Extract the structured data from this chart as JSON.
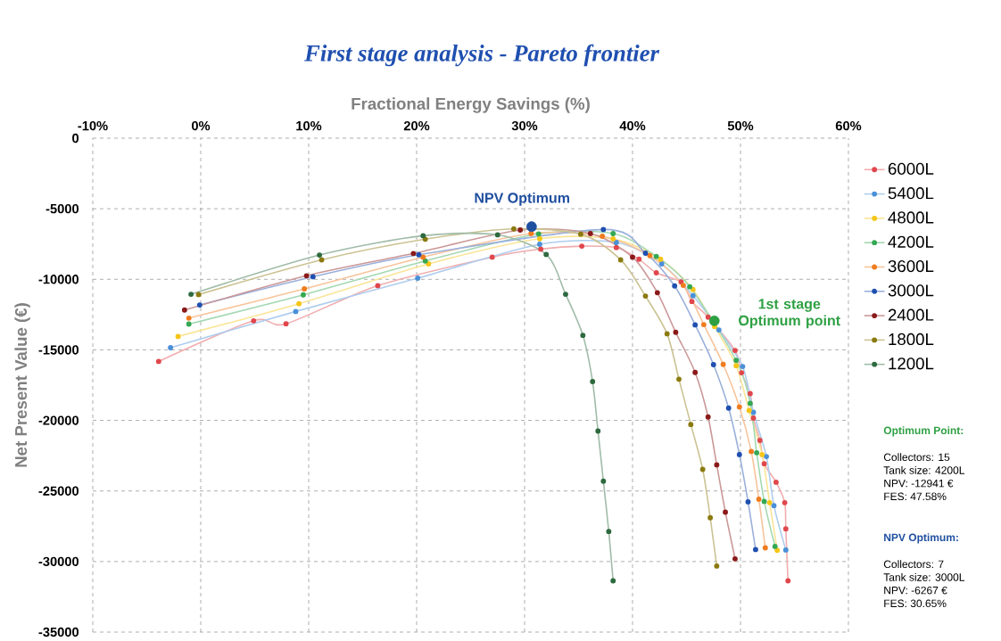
{
  "chart_data": {
    "type": "line",
    "title": "First stage analysis - Pareto frontier",
    "xlabel": "Fractional Energy Savings (%)",
    "ylabel": "Net Present Value (€)",
    "xlim": [
      -10,
      60
    ],
    "ylim": [
      -35000,
      0
    ],
    "xticks": [
      {
        "value": -10,
        "label": "-10%"
      },
      {
        "value": 0,
        "label": "0%"
      },
      {
        "value": 10,
        "label": "10%"
      },
      {
        "value": 20,
        "label": "20%"
      },
      {
        "value": 30,
        "label": "30%"
      },
      {
        "value": 40,
        "label": "40%"
      },
      {
        "value": 50,
        "label": "50%"
      },
      {
        "value": 60,
        "label": "60%"
      }
    ],
    "yticks": [
      0,
      -5000,
      -10000,
      -15000,
      -20000,
      -25000,
      -30000,
      -35000
    ],
    "grid": true,
    "legend": "right",
    "marker": "circle",
    "line_style": "solid",
    "series": [
      {
        "name": "6000L",
        "color": "#e0474c",
        "x": [
          -3.9,
          4.9,
          7.9,
          16.4,
          27.0,
          31.5,
          35.3,
          38.5,
          40.6,
          42.2,
          44.5,
          45.5,
          47.0,
          49.5,
          50.1,
          50.9,
          51.2,
          51.8,
          52.2,
          53.3,
          54.1,
          54.2,
          54.4
        ],
        "values": [
          -15820,
          -12940,
          -13150,
          -10450,
          -8430,
          -7860,
          -7650,
          -7750,
          -8580,
          -9540,
          -10190,
          -11570,
          -12680,
          -15040,
          -16620,
          -18100,
          -19840,
          -21420,
          -23070,
          -24380,
          -25830,
          -27680,
          -31370
        ]
      },
      {
        "name": "5400L",
        "color": "#4a90d9",
        "x": [
          -2.8,
          8.8,
          20.1,
          31.4,
          38.5,
          42.7,
          45.6,
          48.0,
          50.2,
          51.2,
          52.4,
          53.1,
          54.2
        ],
        "values": [
          -14850,
          -12280,
          -9920,
          -7520,
          -7390,
          -8910,
          -11170,
          -13590,
          -16180,
          -19420,
          -22560,
          -26040,
          -29180
        ]
      },
      {
        "name": "4800L",
        "color": "#f5c518",
        "x": [
          -2.1,
          9.1,
          21.1,
          31.4,
          38.2,
          42.6,
          45.6,
          47.6,
          49.6,
          50.8,
          52.0,
          52.7,
          53.4
        ],
        "values": [
          -14050,
          -11730,
          -8910,
          -7120,
          -7140,
          -8580,
          -10720,
          -13340,
          -16120,
          -19300,
          -22420,
          -25830,
          -29200
        ]
      },
      {
        "name": "4200L",
        "color": "#34a853",
        "x": [
          -1.1,
          9.5,
          20.8,
          31.3,
          38.2,
          42.2,
          45.3,
          49.6,
          50.9,
          51.5,
          52.2,
          53.2
        ],
        "values": [
          -13170,
          -11100,
          -8700,
          -6780,
          -6760,
          -8380,
          -10530,
          -15740,
          -18790,
          -22290,
          -25740,
          -28930
        ]
      },
      {
        "name": "3600L",
        "color": "#f07c1e",
        "x": [
          -1.1,
          9.6,
          20.6,
          30.6,
          37.2,
          41.6,
          44.7,
          46.6,
          48.4,
          49.9,
          51.0,
          51.7,
          52.3
        ],
        "values": [
          -12750,
          -10680,
          -8430,
          -6760,
          -6950,
          -8320,
          -10430,
          -13210,
          -16030,
          -19040,
          -22200,
          -25580,
          -29030
        ]
      },
      {
        "name": "3000L",
        "color": "#1f4fb0",
        "x": [
          -0.1,
          10.4,
          20.2,
          37.3,
          41.2,
          43.9,
          45.8,
          47.5,
          48.9,
          49.9,
          50.7,
          51.4
        ],
        "values": [
          -11820,
          -9820,
          -8260,
          -6470,
          -8150,
          -10470,
          -13230,
          -16050,
          -19130,
          -22420,
          -25770,
          -29150
        ]
      },
      {
        "name": "2400L",
        "color": "#8b1a1a",
        "x": [
          -1.5,
          9.8,
          19.7,
          29.6,
          36.1,
          40.0,
          42.3,
          44.0,
          45.8,
          47.0,
          47.8,
          48.6,
          49.5
        ],
        "values": [
          -12180,
          -9750,
          -8170,
          -6510,
          -6760,
          -8430,
          -10950,
          -13760,
          -16600,
          -19760,
          -23150,
          -26500,
          -29810
        ]
      },
      {
        "name": "1800L",
        "color": "#8b7a10",
        "x": [
          -0.2,
          11.2,
          20.8,
          29.0,
          35.2,
          38.9,
          41.2,
          43.2,
          44.3,
          45.4,
          46.5,
          47.2,
          47.8
        ],
        "values": [
          -11080,
          -8620,
          -7160,
          -6430,
          -6800,
          -8620,
          -11190,
          -13860,
          -17080,
          -20290,
          -23470,
          -26900,
          -30320
        ]
      },
      {
        "name": "1200L",
        "color": "#2d6a3e",
        "x": [
          -0.9,
          11.0,
          20.6,
          27.5,
          32.0,
          33.8,
          35.4,
          36.3,
          36.8,
          37.3,
          37.8,
          38.2
        ],
        "values": [
          -11060,
          -8280,
          -6910,
          -6850,
          -8240,
          -11060,
          -13970,
          -17250,
          -20750,
          -24310,
          -27870,
          -31370
        ]
      },
      {
        "type": "scatter",
        "color": "#1f4fa0",
        "x": [
          30.65
        ],
        "values": [
          -6267
        ]
      },
      {
        "type": "scatter",
        "color": "#2ea043",
        "x": [
          47.58
        ],
        "values": [
          -12941
        ]
      }
    ],
    "annotations": [
      {
        "text": "NPV Optimum",
        "x": 30.65,
        "y": -6267
      },
      {
        "text": "1st stage Optimum point",
        "x": 47.58,
        "y": -12941
      },
      "Optimum Point:",
      "Collectors: 15",
      "Tank size: 4200L",
      "NPV: -12941 €",
      "FES: 47.58%",
      "NPV Optimum:",
      "Collectors: 7",
      "Tank size: 3000L",
      "NPV: -6267 €",
      "FES: 30.65%"
    ]
  }
}
